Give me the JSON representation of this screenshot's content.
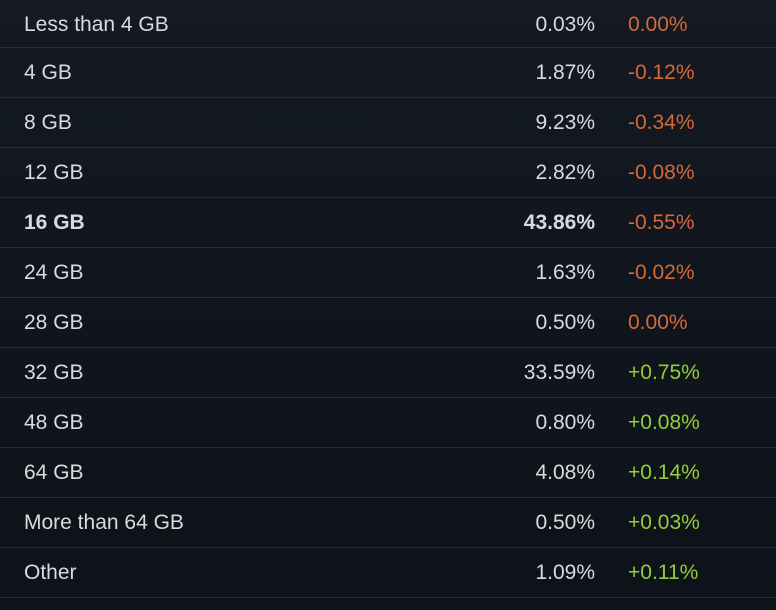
{
  "colors": {
    "background": "#10151d",
    "row_divider": "#262d36",
    "text": "#d8dbe0",
    "negative": "#d4693a",
    "positive": "#8fcf3c"
  },
  "rows": [
    {
      "label": "Less than 4 GB",
      "percent": "0.03%",
      "change": "0.00%",
      "trend": "zero",
      "highlight": false
    },
    {
      "label": "4 GB",
      "percent": "1.87%",
      "change": "-0.12%",
      "trend": "neg",
      "highlight": false
    },
    {
      "label": "8 GB",
      "percent": "9.23%",
      "change": "-0.34%",
      "trend": "neg",
      "highlight": false
    },
    {
      "label": "12 GB",
      "percent": "2.82%",
      "change": "-0.08%",
      "trend": "neg",
      "highlight": false
    },
    {
      "label": "16 GB",
      "percent": "43.86%",
      "change": "-0.55%",
      "trend": "neg",
      "highlight": true
    },
    {
      "label": "24 GB",
      "percent": "1.63%",
      "change": "-0.02%",
      "trend": "neg",
      "highlight": false
    },
    {
      "label": "28 GB",
      "percent": "0.50%",
      "change": "0.00%",
      "trend": "zero",
      "highlight": false
    },
    {
      "label": "32 GB",
      "percent": "33.59%",
      "change": "+0.75%",
      "trend": "pos",
      "highlight": false
    },
    {
      "label": "48 GB",
      "percent": "0.80%",
      "change": "+0.08%",
      "trend": "pos",
      "highlight": false
    },
    {
      "label": "64 GB",
      "percent": "4.08%",
      "change": "+0.14%",
      "trend": "pos",
      "highlight": false
    },
    {
      "label": "More than 64 GB",
      "percent": "0.50%",
      "change": "+0.03%",
      "trend": "pos",
      "highlight": false
    },
    {
      "label": "Other",
      "percent": "1.09%",
      "change": "+0.11%",
      "trend": "pos",
      "highlight": false
    }
  ]
}
